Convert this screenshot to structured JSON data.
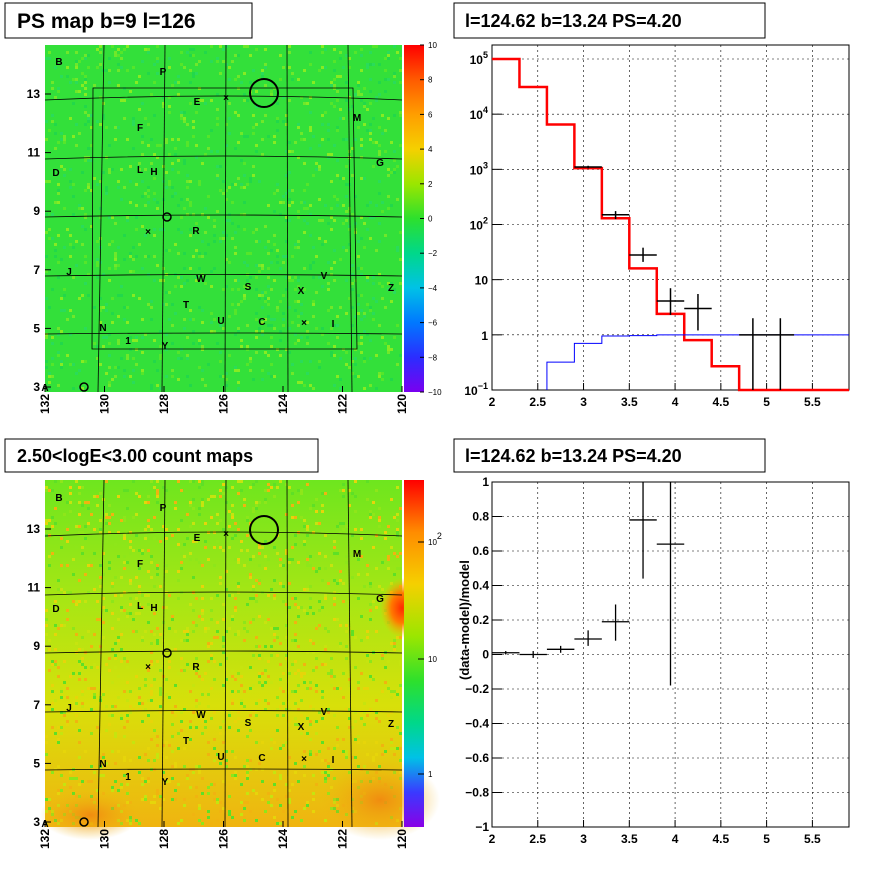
{
  "panels": {
    "ps_map": {
      "title": "PS map b=9 l=126"
    },
    "spectrum": {
      "title": "l=124.62 b=13.24 PS=4.20"
    },
    "count_map": {
      "title": "2.50<logE<3.00 count maps"
    },
    "residual": {
      "title": "l=124.62 b=13.24 PS=4.20"
    }
  },
  "colors": {
    "data": "#000000",
    "model": "#ff0000",
    "background": "#0000ff"
  },
  "chart_data": [
    {
      "type": "heatmap",
      "title": "PS map b=9 l=126",
      "x_ticks": [
        "132",
        "130",
        "128",
        "126",
        "124",
        "122",
        "120"
      ],
      "y_ticks": [
        "3",
        "5",
        "7",
        "9",
        "11",
        "13"
      ],
      "xlim": [
        132,
        120
      ],
      "ylim": [
        3,
        14.5
      ],
      "colorbar": {
        "range": [
          -10,
          10
        ],
        "ticks": [
          "10",
          "8",
          "6",
          "4",
          "2",
          "0",
          "−2",
          "−4",
          "−6",
          "−8",
          "−10"
        ]
      },
      "sources": [
        "B",
        "P",
        "E",
        "M",
        "F",
        "G",
        "D",
        "L",
        "H",
        "O",
        "R",
        "J",
        "W",
        "S",
        "X",
        "V",
        "Z",
        "T",
        "N",
        "U",
        "C",
        "I",
        "1",
        "Y",
        "A"
      ]
    },
    {
      "type": "line",
      "title": "l=124.62 b=13.24 PS=4.20",
      "log_y": true,
      "xlim": [
        2,
        5.9
      ],
      "ylim": [
        0.1,
        100000
      ],
      "x_ticks": [
        "2",
        "2.5",
        "3",
        "3.5",
        "4",
        "4.5",
        "5",
        "5.5"
      ],
      "y_ticks": [
        "10^5",
        "10^4",
        "10^3",
        "10^2",
        "10",
        "1",
        "10^-1"
      ],
      "model_step": [
        [
          2,
          100000
        ],
        [
          2.3,
          31000
        ],
        [
          2.6,
          6500
        ],
        [
          2.9,
          1050
        ],
        [
          3.2,
          130
        ],
        [
          3.5,
          16
        ],
        [
          3.8,
          2.4
        ],
        [
          4.1,
          0.8
        ],
        [
          4.4,
          0.27
        ],
        [
          4.7,
          0.1
        ],
        [
          5.9,
          0.1
        ]
      ],
      "background_step": [
        [
          2.6,
          0.1
        ],
        [
          2.6,
          0.32
        ],
        [
          2.9,
          0.7
        ],
        [
          3.2,
          0.95
        ],
        [
          3.5,
          0.97
        ],
        [
          3.8,
          1.0
        ],
        [
          5.9,
          1.0
        ]
      ],
      "data_points": [
        {
          "x": 3.05,
          "y": 1100,
          "xerr": 0.15,
          "ylo": 1040,
          "yhi": 1160
        },
        {
          "x": 3.35,
          "y": 150,
          "xerr": 0.15,
          "ylo": 125,
          "yhi": 175
        },
        {
          "x": 3.65,
          "y": 28,
          "xerr": 0.15,
          "ylo": 21,
          "yhi": 38
        },
        {
          "x": 3.95,
          "y": 4.1,
          "xerr": 0.15,
          "ylo": 2.3,
          "yhi": 7
        },
        {
          "x": 4.25,
          "y": 3.0,
          "xerr": 0.15,
          "ylo": 1.2,
          "yhi": 5.5
        },
        {
          "x": 4.85,
          "y": 1.0,
          "xerr": 0.15,
          "ylo": 0.1,
          "yhi": 2.0
        },
        {
          "x": 5.15,
          "y": 1.0,
          "xerr": 0.15,
          "ylo": 0.1,
          "yhi": 2.0
        }
      ]
    },
    {
      "type": "heatmap",
      "title": "2.50<logE<3.00 count maps",
      "x_ticks": [
        "132",
        "130",
        "128",
        "126",
        "124",
        "122",
        "120"
      ],
      "y_ticks": [
        "3",
        "5",
        "7",
        "9",
        "11",
        "13"
      ],
      "colorbar": {
        "log": true,
        "ticks": [
          "10^2",
          "10",
          "1"
        ]
      }
    },
    {
      "type": "scatter",
      "title": "l=124.62 b=13.24 PS=4.20",
      "ylabel": "(data-model)/model",
      "xlim": [
        2,
        5.9
      ],
      "ylim": [
        -1,
        1
      ],
      "x_ticks": [
        "2",
        "2.5",
        "3",
        "3.5",
        "4",
        "4.5",
        "5",
        "5.5"
      ],
      "y_ticks": [
        "1",
        "0.8",
        "0.6",
        "0.4",
        "0.2",
        "0",
        "−0.2",
        "−0.4",
        "−0.6",
        "−0.8",
        "−1"
      ],
      "data_points": [
        {
          "x": 2.15,
          "y": 0.01,
          "xerr": 0.15,
          "ylo": 0.0,
          "yhi": 0.02
        },
        {
          "x": 2.45,
          "y": 0.0,
          "xerr": 0.15,
          "ylo": -0.02,
          "yhi": 0.02
        },
        {
          "x": 2.75,
          "y": 0.03,
          "xerr": 0.15,
          "ylo": 0.01,
          "yhi": 0.05
        },
        {
          "x": 3.05,
          "y": 0.09,
          "xerr": 0.15,
          "ylo": 0.05,
          "yhi": 0.14
        },
        {
          "x": 3.35,
          "y": 0.19,
          "xerr": 0.15,
          "ylo": 0.08,
          "yhi": 0.29
        },
        {
          "x": 3.65,
          "y": 0.78,
          "xerr": 0.15,
          "ylo": 0.44,
          "yhi": 1.0
        },
        {
          "x": 3.95,
          "y": 0.64,
          "xerr": 0.15,
          "ylo": -0.18,
          "yhi": 1.0
        }
      ]
    }
  ]
}
